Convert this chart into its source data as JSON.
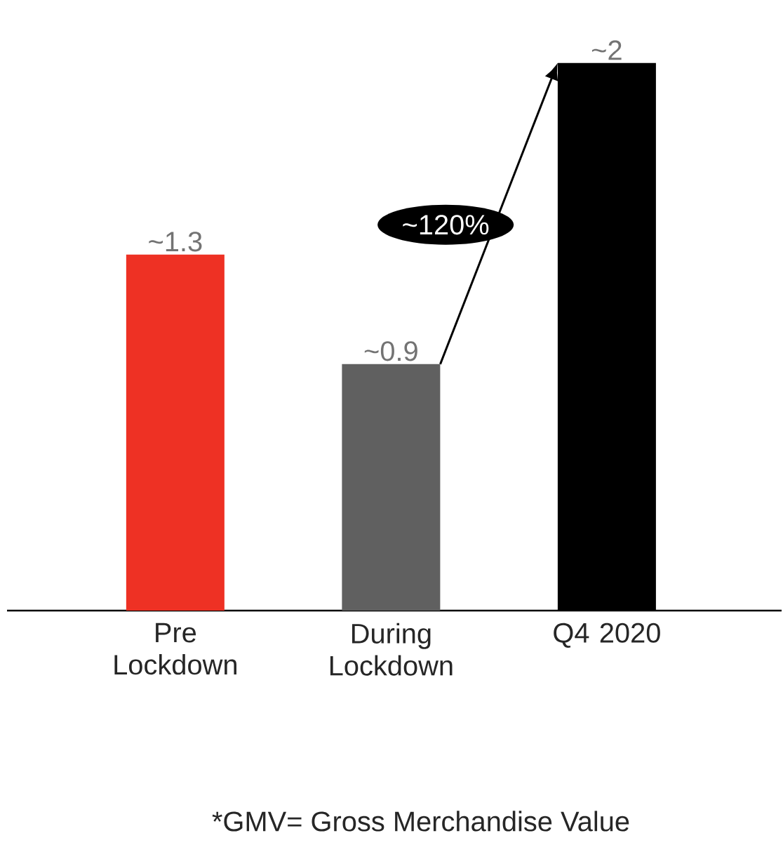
{
  "chart_data": {
    "type": "bar",
    "categories": [
      "Pre Lockdown",
      "During Lockdown",
      "Q4 2020"
    ],
    "values": [
      1.3,
      0.9,
      2
    ],
    "colors": [
      "#ee3124",
      "#606060",
      "#000000"
    ],
    "value_labels": [
      "~1.3",
      "~0.9",
      "~2"
    ],
    "annotations": [
      "~120%",
      "*GMV= Gross Merchandise Value"
    ]
  }
}
